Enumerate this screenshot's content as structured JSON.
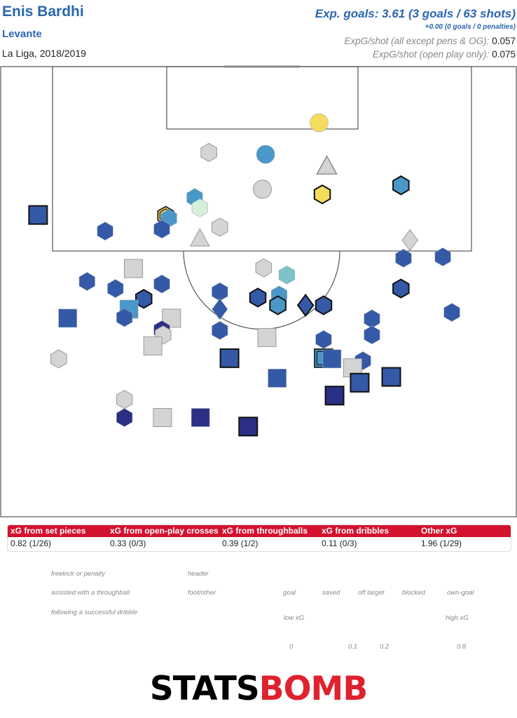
{
  "header": {
    "player": "Enis Bardhi",
    "team": "Levante",
    "competition": "La Liga, 2018/2019",
    "xg_total": "Exp. goals: 3.61 (3 goals / 63 shots)",
    "penalties": "+0.00 (0 goals / 0 penalties)",
    "xgs_all_label": "ExpG/shot (all except pens & OG):",
    "xgs_all_value": "0.057",
    "xgs_open_label": "ExpG/shot (open play only):",
    "xgs_open_value": "0.075"
  },
  "stats": [
    {
      "label": "xG from set pieces",
      "value": "0.82 (1/26)"
    },
    {
      "label": "xG from open-play crosses",
      "value": "0.33 (0/3)"
    },
    {
      "label": "xG from throughballs",
      "value": "0.39 (1/2)"
    },
    {
      "label": "xG from dribbles",
      "value": "0.11 (0/3)"
    },
    {
      "label": "Other xG",
      "value": "1.96 (1/29)"
    }
  ],
  "legend": {
    "shapes": {
      "freekick": "freekick or penalty",
      "throughball": "assisted with a throughball",
      "dribble": "following a successful dribble",
      "header": "header",
      "foot": "foot/other"
    },
    "outcomes": [
      "goal",
      "saved",
      "off target",
      "blocked",
      "own-goal"
    ],
    "scale": {
      "low": "low xG",
      "high": "high xG",
      "ticks": [
        "0",
        "0.1",
        "0.2",
        "0.8"
      ],
      "colors": [
        "#2b2f86",
        "#3459a6",
        "#4a97c9",
        "#7ec3c8",
        "#d6efd9",
        "#f0f0a5",
        "#f6dc5c",
        "#f4b24c",
        "#ec853b",
        "#d2502a",
        "#c0121f",
        "#8b0d12"
      ]
    }
  },
  "brand": {
    "part1": "STATS",
    "part2": "BOMB"
  },
  "chart_data": {
    "type": "scatter",
    "description_fields": [
      "x_m (width across pitch, 0-80)",
      "y_m (distance from goal line, metres)",
      "shape",
      "outcome",
      "xg"
    ],
    "colors": {
      "blocked_fill": "#d4d4d4",
      "low": "#2b2f86",
      "high": "#8b0d12"
    },
    "shots": [
      {
        "x": 49.4,
        "y": 8.7,
        "shape": "circle",
        "outcome": "off",
        "xg": 0.22
      },
      {
        "x": 41.1,
        "y": 13.6,
        "shape": "circle",
        "outcome": "off",
        "xg": 0.08
      },
      {
        "x": 32.3,
        "y": 13.3,
        "shape": "hexagon",
        "outcome": "blocked",
        "xg": 0.03
      },
      {
        "x": 50.6,
        "y": 15.5,
        "shape": "triangle",
        "outcome": "goal",
        "xg": 0.3
      },
      {
        "x": 50.6,
        "y": 15.5,
        "shape": "triangle",
        "outcome": "blocked",
        "xg": 0.05
      },
      {
        "x": 62.1,
        "y": 18.4,
        "shape": "hexagon",
        "outcome": "saved",
        "xg": 0.06
      },
      {
        "x": 49.9,
        "y": 19.8,
        "shape": "hexagon",
        "outcome": "saved",
        "xg": 0.21
      },
      {
        "x": 40.6,
        "y": 19.0,
        "shape": "circle",
        "outcome": "blocked",
        "xg": 0.01
      },
      {
        "x": 30.1,
        "y": 20.3,
        "shape": "hexagon",
        "outcome": "off",
        "xg": 0.06
      },
      {
        "x": 30.9,
        "y": 21.9,
        "shape": "hexagon",
        "outcome": "off",
        "xg": 0.12
      },
      {
        "x": 25.6,
        "y": 23.1,
        "shape": "hexagon",
        "outcome": "goal",
        "xg": 0.2
      },
      {
        "x": 26.1,
        "y": 23.5,
        "shape": "hexagon",
        "outcome": "off",
        "xg": 0.06
      },
      {
        "x": 5.8,
        "y": 23.0,
        "shape": "square",
        "outcome": "saved",
        "xg": 0.05
      },
      {
        "x": 16.2,
        "y": 25.5,
        "shape": "hexagon",
        "outcome": "off",
        "xg": 0.03
      },
      {
        "x": 25.0,
        "y": 25.2,
        "shape": "hexagon",
        "outcome": "off",
        "xg": 0.05
      },
      {
        "x": 34.0,
        "y": 24.9,
        "shape": "hexagon",
        "outcome": "blocked",
        "xg": 0.03
      },
      {
        "x": 30.9,
        "y": 26.7,
        "shape": "triangle",
        "outcome": "blocked",
        "xg": 0.03
      },
      {
        "x": 63.5,
        "y": 26.9,
        "shape": "diamond",
        "outcome": "blocked",
        "xg": 0.02
      },
      {
        "x": 62.5,
        "y": 29.7,
        "shape": "hexagon",
        "outcome": "off",
        "xg": 0.04
      },
      {
        "x": 68.6,
        "y": 29.5,
        "shape": "hexagon",
        "outcome": "off",
        "xg": 0.03
      },
      {
        "x": 20.6,
        "y": 31.3,
        "shape": "square",
        "outcome": "blocked",
        "xg": 0.01
      },
      {
        "x": 40.8,
        "y": 31.2,
        "shape": "hexagon",
        "outcome": "blocked",
        "xg": 0.02
      },
      {
        "x": 44.4,
        "y": 32.3,
        "shape": "hexagon",
        "outcome": "off",
        "xg": 0.1
      },
      {
        "x": 13.4,
        "y": 33.3,
        "shape": "hexagon",
        "outcome": "off",
        "xg": 0.03
      },
      {
        "x": 17.8,
        "y": 34.4,
        "shape": "hexagon",
        "outcome": "off",
        "xg": 0.03
      },
      {
        "x": 25.0,
        "y": 33.7,
        "shape": "hexagon",
        "outcome": "off",
        "xg": 0.03
      },
      {
        "x": 62.1,
        "y": 34.4,
        "shape": "hexagon",
        "outcome": "saved",
        "xg": 0.04
      },
      {
        "x": 34.0,
        "y": 34.9,
        "shape": "hexagon",
        "outcome": "off",
        "xg": 0.04
      },
      {
        "x": 22.2,
        "y": 36.0,
        "shape": "hexagon",
        "outcome": "saved",
        "xg": 0.05
      },
      {
        "x": 39.9,
        "y": 35.8,
        "shape": "hexagon",
        "outcome": "saved",
        "xg": 0.05
      },
      {
        "x": 43.2,
        "y": 35.4,
        "shape": "hexagon",
        "outcome": "off",
        "xg": 0.06
      },
      {
        "x": 34.0,
        "y": 37.6,
        "shape": "diamond",
        "outcome": "off",
        "xg": 0.05
      },
      {
        "x": 43.0,
        "y": 37.0,
        "shape": "hexagon",
        "outcome": "saved",
        "xg": 0.06
      },
      {
        "x": 47.3,
        "y": 37.0,
        "shape": "diamond",
        "outcome": "saved",
        "xg": 0.05
      },
      {
        "x": 50.1,
        "y": 37.0,
        "shape": "hexagon",
        "outcome": "saved",
        "xg": 0.05
      },
      {
        "x": 70.0,
        "y": 38.1,
        "shape": "hexagon",
        "outcome": "off",
        "xg": 0.03
      },
      {
        "x": 10.4,
        "y": 39.0,
        "shape": "square",
        "outcome": "off",
        "xg": 0.04
      },
      {
        "x": 19.9,
        "y": 37.6,
        "shape": "square",
        "outcome": "off",
        "xg": 0.06
      },
      {
        "x": 19.2,
        "y": 38.9,
        "shape": "hexagon",
        "outcome": "off",
        "xg": 0.03
      },
      {
        "x": 26.5,
        "y": 39.0,
        "shape": "square",
        "outcome": "blocked",
        "xg": 0.01
      },
      {
        "x": 57.6,
        "y": 39.1,
        "shape": "hexagon",
        "outcome": "off",
        "xg": 0.03
      },
      {
        "x": 25.0,
        "y": 40.8,
        "shape": "hexagon",
        "outcome": "off",
        "xg": 0.02
      },
      {
        "x": 25.2,
        "y": 41.6,
        "shape": "hexagon",
        "outcome": "blocked",
        "xg": 0.01
      },
      {
        "x": 34.0,
        "y": 40.9,
        "shape": "hexagon",
        "outcome": "off",
        "xg": 0.03
      },
      {
        "x": 57.6,
        "y": 41.6,
        "shape": "hexagon",
        "outcome": "off",
        "xg": 0.03
      },
      {
        "x": 41.3,
        "y": 42.0,
        "shape": "square",
        "outcome": "blocked",
        "xg": 0.01
      },
      {
        "x": 50.1,
        "y": 42.3,
        "shape": "hexagon",
        "outcome": "off",
        "xg": 0.03
      },
      {
        "x": 23.6,
        "y": 43.3,
        "shape": "square",
        "outcome": "blocked",
        "xg": 0.01
      },
      {
        "x": 9.0,
        "y": 45.3,
        "shape": "hexagon",
        "outcome": "blocked",
        "xg": 0.01
      },
      {
        "x": 35.5,
        "y": 45.2,
        "shape": "square",
        "outcome": "saved",
        "xg": 0.04
      },
      {
        "x": 50.1,
        "y": 45.2,
        "shape": "square",
        "outcome": "goal",
        "xg": 0.06
      },
      {
        "x": 51.4,
        "y": 45.3,
        "shape": "square",
        "outcome": "off",
        "xg": 0.05
      },
      {
        "x": 56.2,
        "y": 45.6,
        "shape": "hexagon",
        "outcome": "off",
        "xg": 0.03
      },
      {
        "x": 54.6,
        "y": 46.7,
        "shape": "square",
        "outcome": "blocked",
        "xg": 0.01
      },
      {
        "x": 60.6,
        "y": 48.1,
        "shape": "square",
        "outcome": "saved",
        "xg": 0.04
      },
      {
        "x": 42.9,
        "y": 48.3,
        "shape": "square",
        "outcome": "off",
        "xg": 0.03
      },
      {
        "x": 55.7,
        "y": 49.0,
        "shape": "square",
        "outcome": "saved",
        "xg": 0.03
      },
      {
        "x": 51.8,
        "y": 51.0,
        "shape": "square",
        "outcome": "saved",
        "xg": 0.01
      },
      {
        "x": 19.2,
        "y": 51.6,
        "shape": "hexagon",
        "outcome": "blocked",
        "xg": 0.01
      },
      {
        "x": 19.2,
        "y": 54.4,
        "shape": "hexagon",
        "outcome": "off",
        "xg": 0.02
      },
      {
        "x": 25.1,
        "y": 54.4,
        "shape": "square",
        "outcome": "blocked",
        "xg": 0.01
      },
      {
        "x": 31.0,
        "y": 54.4,
        "shape": "square",
        "outcome": "off",
        "xg": 0.02
      },
      {
        "x": 38.4,
        "y": 55.8,
        "shape": "square",
        "outcome": "saved",
        "xg": 0.01
      }
    ]
  }
}
